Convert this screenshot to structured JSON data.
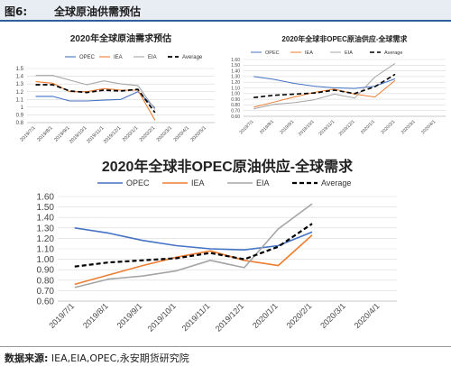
{
  "figure": {
    "number": "图6:",
    "title": "全球原油供需预估"
  },
  "source": {
    "label": "数据来源:",
    "text": "IEA,EIA,OPEC,永安期货研究院"
  },
  "colors": {
    "OPEC": "#4472c4",
    "IEA": "#ed7d31",
    "EIA": "#a5a5a5",
    "Average": "#000000"
  },
  "chart_data": [
    {
      "type": "line",
      "title": "2020年全球原油需求预估",
      "categories": [
        "2019/7/1",
        "2019/8/1",
        "2019/9/1",
        "2019/10/1",
        "2019/11/1",
        "2019/12/1",
        "2020/1/1",
        "2020/2/1",
        "2020/3/1",
        "2020/4/1",
        "2020/5/1"
      ],
      "ylim": [
        0.8,
        1.5
      ],
      "yticks": [
        "0.8",
        "0.9",
        "1",
        "1.1",
        "1.2",
        "1.3",
        "1.4",
        "1.5"
      ],
      "legend_position": "top",
      "series": [
        {
          "name": "OPEC",
          "values": [
            1.14,
            1.14,
            1.08,
            1.08,
            1.09,
            1.1,
            1.2,
            0.99,
            null,
            null,
            null
          ]
        },
        {
          "name": "IEA",
          "values": [
            1.33,
            1.31,
            1.2,
            1.2,
            1.24,
            1.22,
            1.22,
            0.83,
            null,
            null,
            null
          ]
        },
        {
          "name": "EIA",
          "values": [
            1.41,
            1.41,
            1.35,
            1.29,
            1.34,
            1.3,
            1.28,
            0.97,
            null,
            null,
            null
          ]
        },
        {
          "name": "Average",
          "values": [
            1.29,
            1.29,
            1.21,
            1.19,
            1.22,
            1.21,
            1.23,
            0.93,
            null,
            null,
            null
          ]
        }
      ]
    },
    {
      "type": "line",
      "title": "2020年全球非OPEC原油供应-全球需求",
      "categories": [
        "2019/7/1",
        "2019/8/1",
        "2019/9/1",
        "2019/10/1",
        "2019/11/1",
        "2019/12/1",
        "2020/1/1",
        "2020/2/1",
        "2020/3/1",
        "2020/4/1"
      ],
      "ylim": [
        0.6,
        1.6
      ],
      "yticks": [
        "0.60",
        "0.70",
        "0.80",
        "0.90",
        "1.00",
        "1.10",
        "1.20",
        "1.30",
        "1.40",
        "1.50",
        "1.60"
      ],
      "legend_position": "top",
      "series": [
        {
          "name": "OPEC",
          "values": [
            1.3,
            1.25,
            1.18,
            1.13,
            1.1,
            1.09,
            1.13,
            1.26,
            null,
            null
          ]
        },
        {
          "name": "IEA",
          "values": [
            0.76,
            0.85,
            0.94,
            1.02,
            1.08,
            0.99,
            0.94,
            1.23,
            null,
            null
          ]
        },
        {
          "name": "EIA",
          "values": [
            0.73,
            0.81,
            0.84,
            0.89,
            0.99,
            0.92,
            1.29,
            1.53,
            null,
            null
          ]
        },
        {
          "name": "Average",
          "values": [
            0.93,
            0.97,
            0.99,
            1.01,
            1.06,
            1.0,
            1.12,
            1.34,
            null,
            null
          ]
        }
      ]
    },
    {
      "type": "line",
      "title": "2020年全球非OPEC原油供应-全球需求",
      "categories": [
        "2019/7/1",
        "2019/8/1",
        "2019/9/1",
        "2019/10/1",
        "2019/11/1",
        "2019/12/1",
        "2020/1/1",
        "2020/2/1",
        "2020/3/1",
        "2020/4/1"
      ],
      "ylim": [
        0.6,
        1.6
      ],
      "yticks": [
        "0.60",
        "0.70",
        "0.80",
        "0.90",
        "1.00",
        "1.10",
        "1.20",
        "1.30",
        "1.40",
        "1.50",
        "1.60"
      ],
      "legend_position": "top",
      "series": [
        {
          "name": "OPEC",
          "values": [
            1.3,
            1.25,
            1.18,
            1.13,
            1.1,
            1.09,
            1.13,
            1.26,
            null,
            null
          ]
        },
        {
          "name": "IEA",
          "values": [
            0.76,
            0.85,
            0.94,
            1.02,
            1.08,
            0.99,
            0.94,
            1.23,
            null,
            null
          ]
        },
        {
          "name": "EIA",
          "values": [
            0.73,
            0.81,
            0.84,
            0.89,
            0.99,
            0.92,
            1.29,
            1.53,
            null,
            null
          ]
        },
        {
          "name": "Average",
          "values": [
            0.93,
            0.97,
            0.99,
            1.01,
            1.06,
            1.0,
            1.12,
            1.34,
            null,
            null
          ]
        }
      ]
    }
  ]
}
